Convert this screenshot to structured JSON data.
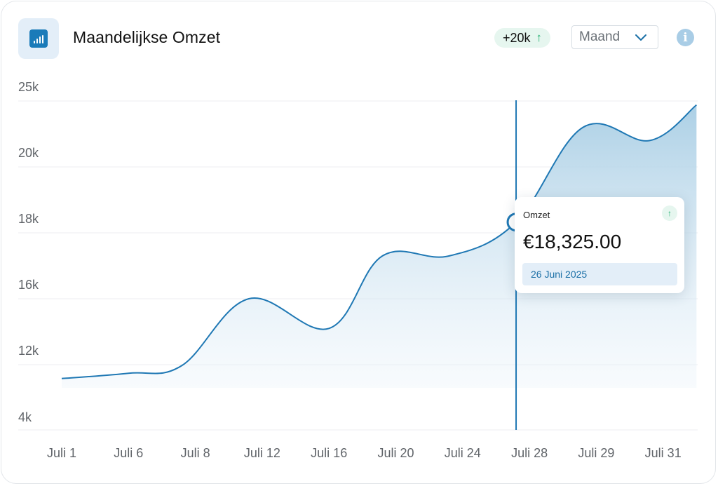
{
  "header": {
    "title": "Maandelijkse Omzet",
    "badge_value": "+20k",
    "period_select": "Maand"
  },
  "tooltip": {
    "label": "Omzet",
    "value": "€18,325.00",
    "date": "26 Juni 2025"
  },
  "colors": {
    "accent": "#1a7bb9",
    "line": "#1f78b4",
    "positive": "#1eae6e"
  },
  "chart_data": {
    "type": "area",
    "title": "Maandelijkse Omzet",
    "xlabel": "",
    "ylabel": "",
    "grid": true,
    "categories": [
      "Juli 1",
      "Juli 6",
      "Juli 8",
      "Juli 12",
      "Juli 16",
      "Juli 20",
      "Juli 24",
      "Juli 28",
      "Juli 29",
      "Juli 31"
    ],
    "y_ticks": [
      "4k",
      "12k",
      "16k",
      "18k",
      "20k",
      "25k"
    ],
    "series": [
      {
        "name": "Omzet",
        "points": [
          {
            "x": 0.0,
            "y": 10300
          },
          {
            "x": 1.0,
            "y": 10950
          },
          {
            "x": 1.8,
            "y": 11900
          },
          {
            "x": 2.8,
            "y": 16000
          },
          {
            "x": 4.0,
            "y": 14200
          },
          {
            "x": 4.8,
            "y": 17300
          },
          {
            "x": 5.8,
            "y": 17300
          },
          {
            "x": 6.8,
            "y": 18325
          },
          {
            "x": 7.8,
            "y": 23000
          },
          {
            "x": 8.8,
            "y": 22000
          },
          {
            "x": 9.5,
            "y": 24700
          }
        ]
      }
    ],
    "highlight": {
      "x": 6.8,
      "y": 18325
    }
  }
}
